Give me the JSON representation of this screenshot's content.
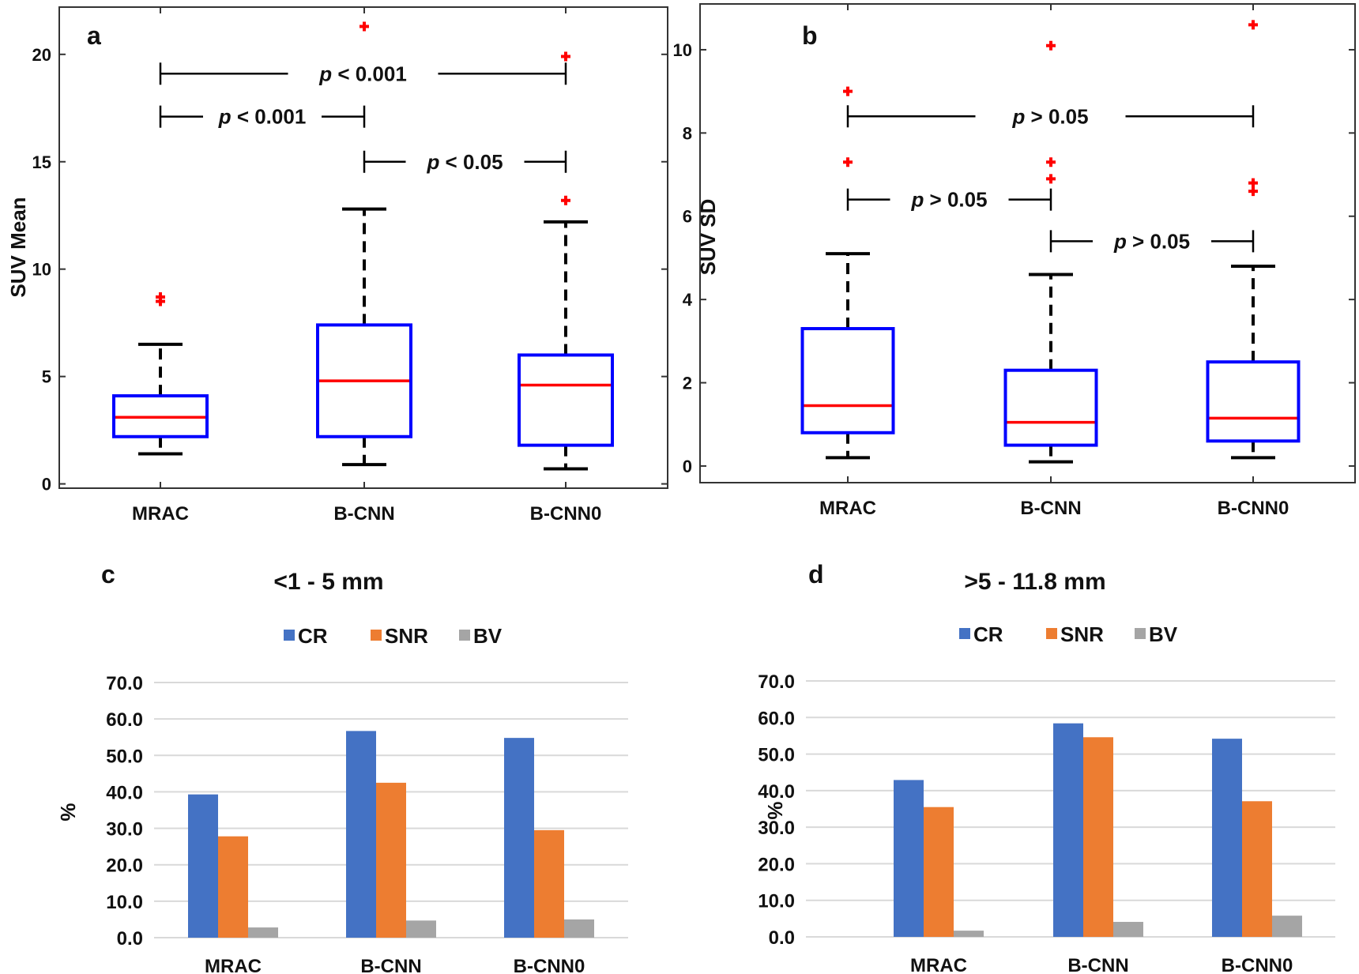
{
  "colors": {
    "box": "#0000ff",
    "median": "#ff0000",
    "outlier": "#ff0000",
    "whisker": "#000000",
    "CR": "#4472c4",
    "SNR": "#ed7d31",
    "BV": "#a5a5a5",
    "grid": "#d9d9d9"
  },
  "chart_data": [
    {
      "type": "box",
      "panel": "a",
      "ylabel": "SUV Mean",
      "categories": [
        "MRAC",
        "B-CNN",
        "B-CNN0"
      ],
      "yticks": [
        0,
        5,
        10,
        15,
        20
      ],
      "ylim": [
        -0.2,
        22.2
      ],
      "boxes": [
        {
          "whisker_low": 1.4,
          "q1": 2.2,
          "median": 3.1,
          "q3": 4.1,
          "whisker_high": 6.5,
          "outliers": [
            8.5,
            8.7
          ]
        },
        {
          "whisker_low": 0.9,
          "q1": 2.2,
          "median": 4.8,
          "q3": 7.4,
          "whisker_high": 12.8,
          "outliers": [
            21.3
          ]
        },
        {
          "whisker_low": 0.7,
          "q1": 1.8,
          "median": 4.6,
          "q3": 6.0,
          "whisker_high": 12.2,
          "outliers": [
            13.2,
            19.9
          ]
        }
      ],
      "comparisons": [
        {
          "from": 0,
          "to": 2,
          "y": 19.1,
          "label": "p < 0.001"
        },
        {
          "from": 0,
          "to": 1,
          "y": 17.1,
          "label": "p < 0.001"
        },
        {
          "from": 1,
          "to": 2,
          "y": 15.0,
          "label": "p < 0.05"
        }
      ]
    },
    {
      "type": "box",
      "panel": "b",
      "ylabel": "SUV SD",
      "categories": [
        "MRAC",
        "B-CNN",
        "B-CNN0"
      ],
      "yticks": [
        0,
        2,
        4,
        6,
        8,
        10
      ],
      "ylim": [
        -0.4,
        11.1
      ],
      "boxes": [
        {
          "whisker_low": 0.2,
          "q1": 0.8,
          "median": 1.45,
          "q3": 3.3,
          "whisker_high": 5.1,
          "outliers": [
            7.3,
            9.0
          ]
        },
        {
          "whisker_low": 0.1,
          "q1": 0.5,
          "median": 1.05,
          "q3": 2.3,
          "whisker_high": 4.6,
          "outliers": [
            6.9,
            7.3,
            10.1
          ]
        },
        {
          "whisker_low": 0.2,
          "q1": 0.6,
          "median": 1.15,
          "q3": 2.5,
          "whisker_high": 4.8,
          "outliers": [
            6.6,
            6.8,
            10.6
          ]
        }
      ],
      "comparisons": [
        {
          "from": 0,
          "to": 2,
          "y": 8.4,
          "label": "p > 0.05"
        },
        {
          "from": 0,
          "to": 1,
          "y": 6.4,
          "label": "p > 0.05"
        },
        {
          "from": 1,
          "to": 2,
          "y": 5.4,
          "label": "p > 0.05"
        }
      ]
    },
    {
      "type": "bar",
      "panel": "c",
      "title": "<1 - 5 mm",
      "ylabel": "%",
      "categories": [
        "MRAC",
        "B-CNN",
        "B-CNN0"
      ],
      "yticks": [
        "0.0",
        "10.0",
        "20.0",
        "30.0",
        "40.0",
        "50.0",
        "60.0",
        "70.0"
      ],
      "ylim": [
        0,
        70
      ],
      "grid": true,
      "legend": "top",
      "series": [
        {
          "name": "CR",
          "values": [
            39.3,
            56.7,
            54.8
          ]
        },
        {
          "name": "SNR",
          "values": [
            27.8,
            42.5,
            29.5
          ]
        },
        {
          "name": "BV",
          "values": [
            2.8,
            4.7,
            5.0
          ]
        }
      ]
    },
    {
      "type": "bar",
      "panel": "d",
      "title": ">5 - 11.8 mm",
      "ylabel": "%",
      "categories": [
        "MRAC",
        "B-CNN",
        "B-CNN0"
      ],
      "yticks": [
        "0.0",
        "10.0",
        "20.0",
        "30.0",
        "40.0",
        "50.0",
        "60.0",
        "70.0"
      ],
      "ylim": [
        0,
        70
      ],
      "grid": true,
      "legend": "top",
      "series": [
        {
          "name": "CR",
          "values": [
            42.9,
            58.4,
            54.2
          ]
        },
        {
          "name": "SNR",
          "values": [
            35.5,
            54.6,
            37.1
          ]
        },
        {
          "name": "BV",
          "values": [
            1.7,
            4.1,
            5.8
          ]
        }
      ]
    }
  ]
}
